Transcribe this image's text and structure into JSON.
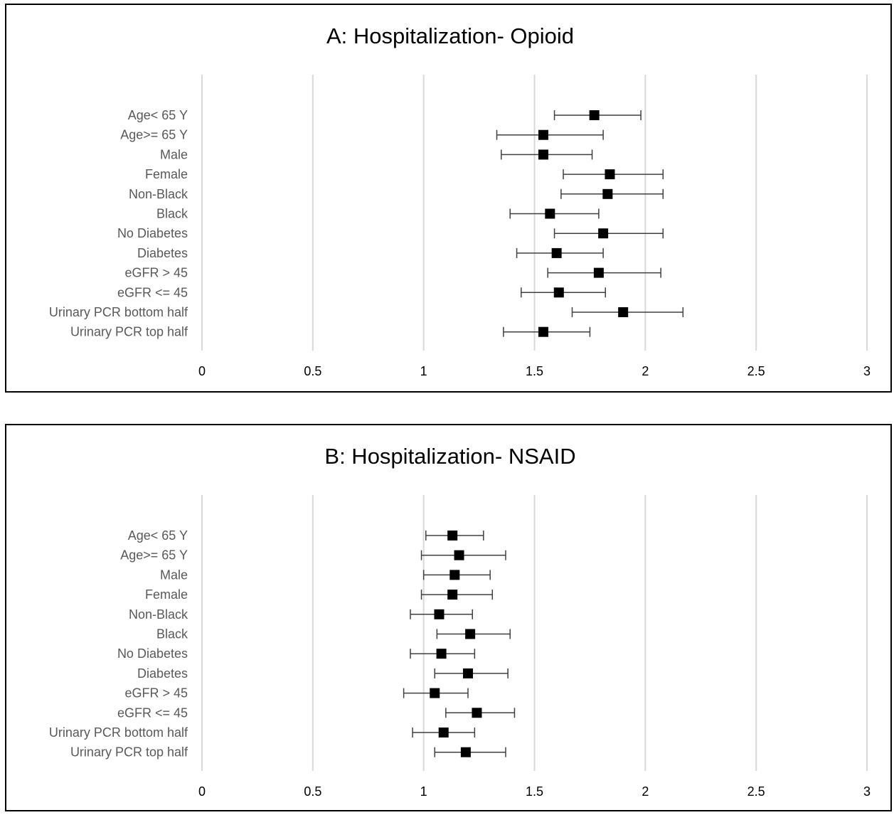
{
  "colors": {
    "grid": "#d9d9d9",
    "marker": "#000000",
    "whisker": "#404040",
    "label": "#595959"
  },
  "chart_data": [
    {
      "type": "forest",
      "title": "A: Hospitalization- Opioid",
      "xlim": [
        0,
        3
      ],
      "xticks": [
        "0",
        "0.5",
        "1",
        "1.5",
        "2",
        "2.5",
        "3"
      ],
      "grid": "vertical",
      "categories": [
        "Age< 65 Y",
        "Age>= 65 Y",
        "Male",
        "Female",
        "Non-Black",
        "Black",
        "No Diabetes",
        "Diabetes",
        "eGFR > 45",
        "eGFR <= 45",
        "Urinary PCR bottom half",
        "Urinary PCR top half"
      ],
      "estimate": [
        1.77,
        1.54,
        1.54,
        1.84,
        1.83,
        1.57,
        1.81,
        1.6,
        1.79,
        1.61,
        1.9,
        1.54
      ],
      "lower": [
        1.59,
        1.33,
        1.35,
        1.63,
        1.62,
        1.39,
        1.59,
        1.42,
        1.56,
        1.44,
        1.67,
        1.36
      ],
      "upper": [
        1.98,
        1.81,
        1.76,
        2.08,
        2.08,
        1.79,
        2.08,
        1.81,
        2.07,
        1.82,
        2.17,
        1.75
      ]
    },
    {
      "type": "forest",
      "title": "B: Hospitalization- NSAID",
      "xlim": [
        0,
        3
      ],
      "xticks": [
        "0",
        "0.5",
        "1",
        "1.5",
        "2",
        "2.5",
        "3"
      ],
      "grid": "vertical",
      "categories": [
        "Age< 65 Y",
        "Age>= 65 Y",
        "Male",
        "Female",
        "Non-Black",
        "Black",
        "No Diabetes",
        "Diabetes",
        "eGFR > 45",
        "eGFR <= 45",
        "Urinary PCR bottom half",
        "Urinary PCR top half"
      ],
      "estimate": [
        1.13,
        1.16,
        1.14,
        1.13,
        1.07,
        1.21,
        1.08,
        1.2,
        1.05,
        1.24,
        1.09,
        1.19
      ],
      "lower": [
        1.01,
        0.99,
        1.0,
        0.99,
        0.94,
        1.06,
        0.94,
        1.05,
        0.91,
        1.1,
        0.95,
        1.05
      ],
      "upper": [
        1.27,
        1.37,
        1.3,
        1.31,
        1.22,
        1.39,
        1.23,
        1.38,
        1.2,
        1.41,
        1.23,
        1.37
      ]
    }
  ]
}
